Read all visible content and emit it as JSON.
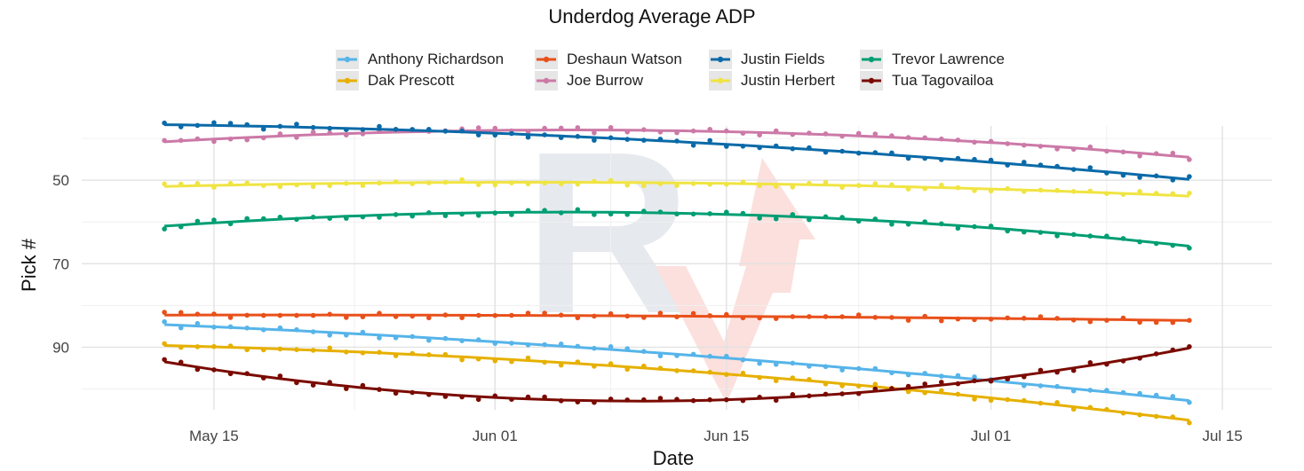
{
  "chart_data": {
    "type": "line",
    "title": "Underdog Average ADP",
    "xlabel": "Date",
    "ylabel": "Pick #",
    "x_axis": {
      "type": "date",
      "range": [
        "2023-05-07",
        "2023-07-18"
      ],
      "ticks": [
        {
          "date": "2023-05-15",
          "label": "May 15"
        },
        {
          "date": "2023-06-01",
          "label": "Jun 01"
        },
        {
          "date": "2023-06-15",
          "label": "Jun 15"
        },
        {
          "date": "2023-07-01",
          "label": "Jul 01"
        },
        {
          "date": "2023-07-15",
          "label": "Jul 15"
        }
      ]
    },
    "y_axis": {
      "reversed": true,
      "range": [
        37,
        105
      ],
      "ticks": [
        50,
        70,
        90
      ]
    },
    "grid": true,
    "legend_position": "top",
    "watermark": "RV logo",
    "x_dates_start": "2023-05-12",
    "series": [
      {
        "name": "Anthony Richardson",
        "color": "#56B4E9",
        "start": 84.6,
        "end": 102.8,
        "curve": -2.0
      },
      {
        "name": "Dak Prescott",
        "color": "#E6B000",
        "start": 89.6,
        "end": 107.5,
        "curve": -3.0
      },
      {
        "name": "Deshaun Watson",
        "color": "#E8501A",
        "start": 82.3,
        "end": 83.6,
        "curve": -0.4
      },
      {
        "name": "Joe Burrow",
        "color": "#CC79A7",
        "start": 40.8,
        "end": 44.5,
        "curve": -4.5
      },
      {
        "name": "Justin Fields",
        "color": "#0A6AA8",
        "start": 36.7,
        "end": 49.8,
        "curve": -2.5
      },
      {
        "name": "Justin Herbert",
        "color": "#F0E442",
        "start": 51.5,
        "end": 53.8,
        "curve": -2.0
      },
      {
        "name": "Trevor Lawrence",
        "color": "#009E73",
        "start": 61.0,
        "end": 65.8,
        "curve": -5.5
      },
      {
        "name": "Tua Tagovailoa",
        "color": "#7A0A00",
        "start": 93.5,
        "end": 90.2,
        "curve": 11.0
      }
    ]
  }
}
